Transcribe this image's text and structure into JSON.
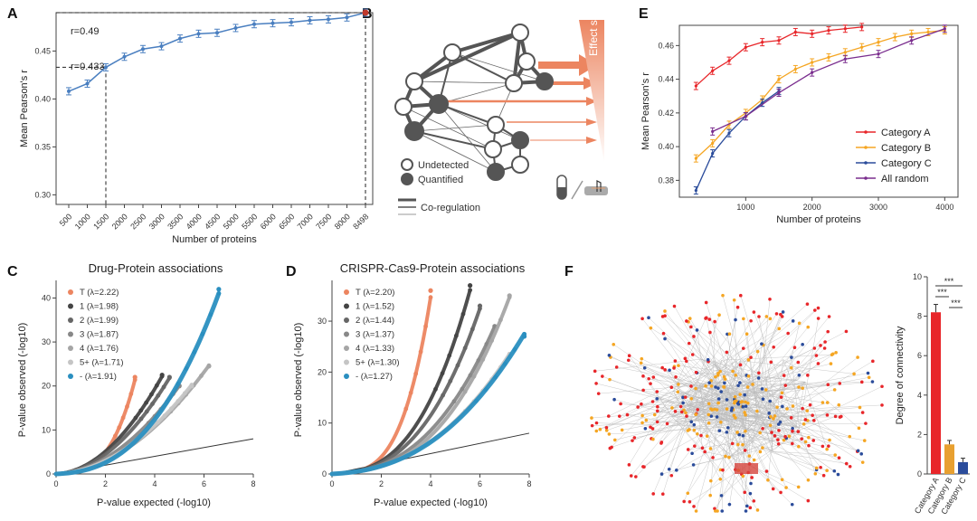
{
  "panels": {
    "A": "A",
    "B": "B",
    "C": "C",
    "D": "D",
    "E": "E",
    "F": "F"
  },
  "colors": {
    "blue": "#4a7fc0",
    "red": "#e8262a",
    "orange": "#f5a623",
    "darkblue": "#2b4c9b",
    "purple": "#7a2d8e",
    "salmon": "#ec8560",
    "qqblue": "#2a8fc0"
  },
  "chart_data": [
    {
      "id": "A",
      "type": "line",
      "xlabel": "Number of proteins",
      "ylabel": "Mean Pearson's r",
      "categories": [
        "500",
        "1000",
        "1500",
        "2000",
        "2500",
        "3000",
        "3500",
        "4000",
        "4500",
        "5000",
        "5500",
        "6000",
        "6500",
        "7000",
        "7500",
        "8000",
        "8498"
      ],
      "values": [
        0.408,
        0.416,
        0.433,
        0.444,
        0.452,
        0.455,
        0.463,
        0.468,
        0.469,
        0.474,
        0.478,
        0.479,
        0.48,
        0.482,
        0.483,
        0.485,
        0.49
      ],
      "yticks": [
        "0.30",
        "0.35",
        "0.40",
        "0.45"
      ],
      "ylim": [
        0.29,
        0.49
      ],
      "annotations": [
        "r=0.49",
        "r=0.433"
      ]
    },
    {
      "id": "E",
      "type": "line",
      "xlabel": "Number of proteins",
      "ylabel": "Mean Pearson's r",
      "xticks": [
        "1000",
        "2000",
        "3000",
        "4000"
      ],
      "yticks": [
        "0.38",
        "0.40",
        "0.42",
        "0.44",
        "0.46"
      ],
      "xlim": [
        0,
        4200
      ],
      "ylim": [
        0.37,
        0.472
      ],
      "series": [
        {
          "name": "Category A",
          "x": [
            250,
            500,
            750,
            1000,
            1250,
            1500,
            1750,
            2000,
            2250,
            2500,
            2750
          ],
          "y": [
            0.436,
            0.445,
            0.451,
            0.459,
            0.462,
            0.463,
            0.468,
            0.467,
            0.469,
            0.47,
            0.471
          ]
        },
        {
          "name": "Category B",
          "x": [
            250,
            500,
            750,
            1000,
            1250,
            1500,
            1750,
            2000,
            2250,
            2500,
            2750,
            3000,
            3250,
            3500,
            3750,
            4000
          ],
          "y": [
            0.393,
            0.402,
            0.413,
            0.42,
            0.428,
            0.44,
            0.446,
            0.45,
            0.453,
            0.456,
            0.459,
            0.462,
            0.465,
            0.467,
            0.468,
            0.469
          ]
        },
        {
          "name": "Category C",
          "x": [
            250,
            500,
            750,
            1000,
            1250,
            1500
          ],
          "y": [
            0.374,
            0.396,
            0.408,
            0.418,
            0.426,
            0.433
          ]
        },
        {
          "name": "All random",
          "x": [
            500,
            1000,
            1500,
            2000,
            2500,
            3000,
            3500,
            4000
          ],
          "y": [
            0.409,
            0.418,
            0.432,
            0.444,
            0.452,
            0.455,
            0.463,
            0.47
          ]
        }
      ]
    },
    {
      "id": "C",
      "type": "scatter",
      "title": "Drug-Protein associations",
      "xlabel": "P-value expected (-log10)",
      "ylabel": "P-value observed (-log10)",
      "xticks": [
        "0",
        "2",
        "4",
        "6",
        "8"
      ],
      "yticks": [
        "0",
        "10",
        "20",
        "30",
        "40"
      ],
      "xlim": [
        0,
        8
      ],
      "ylim": [
        0,
        44
      ],
      "series": [
        {
          "name": "T (λ=2.22)",
          "endx": 3.2,
          "endy": 22,
          "exp": 3.3
        },
        {
          "name": "1 (λ=1.98)",
          "endx": 4.3,
          "endy": 22.5,
          "exp": 2.0
        },
        {
          "name": "2 (λ=1.99)",
          "endx": 4.6,
          "endy": 22.0,
          "exp": 2.0
        },
        {
          "name": "3 (λ=1.87)",
          "endx": 5.0,
          "endy": 20.0,
          "exp": 2.0
        },
        {
          "name": "4 (λ=1.76)",
          "endx": 6.2,
          "endy": 24.5,
          "exp": 2.0
        },
        {
          "name": "5+ (λ=1.71)",
          "endx": 5.5,
          "endy": 20.0,
          "exp": 2.0
        },
        {
          "name": "- (λ=1.91)",
          "endx": 6.6,
          "endy": 42.0,
          "exp": 2.5
        }
      ]
    },
    {
      "id": "D",
      "type": "scatter",
      "title": "CRISPR-Cas9-Protein associations",
      "xlabel": "P-value expected (-log10)",
      "ylabel": "P-value observed (-log10)",
      "xticks": [
        "0",
        "2",
        "4",
        "6",
        "8"
      ],
      "yticks": [
        "0",
        "10",
        "20",
        "30"
      ],
      "xlim": [
        0,
        8
      ],
      "ylim": [
        0,
        38
      ],
      "series": [
        {
          "name": "T (λ=2.20)",
          "endx": 4.0,
          "endy": 36,
          "exp": 3.6
        },
        {
          "name": "1 (λ=1.52)",
          "endx": 5.6,
          "endy": 37,
          "exp": 2.8
        },
        {
          "name": "2 (λ=1.44)",
          "endx": 6.0,
          "endy": 33,
          "exp": 2.7
        },
        {
          "name": "3 (λ=1.37)",
          "endx": 6.6,
          "endy": 29,
          "exp": 2.6
        },
        {
          "name": "4 (λ=1.33)",
          "endx": 7.2,
          "endy": 35,
          "exp": 2.8
        },
        {
          "name": "5+ (λ=1.30)",
          "endx": 7.2,
          "endy": 23,
          "exp": 2.4
        },
        {
          "name": "- (λ=1.27)",
          "endx": 7.8,
          "endy": 27,
          "exp": 2.4
        }
      ]
    },
    {
      "id": "F",
      "type": "bar",
      "ylabel": "Degree of connectivity",
      "categories": [
        "Category A",
        "Category B",
        "Category C"
      ],
      "values": [
        8.2,
        1.5,
        0.6
      ],
      "errors": [
        0.4,
        0.2,
        0.2
      ],
      "yticks": [
        "0",
        "2",
        "4",
        "6",
        "8",
        "10"
      ],
      "ylim": [
        0,
        10
      ],
      "significance": [
        "***",
        "***",
        "***"
      ]
    }
  ],
  "network_B": {
    "legend": [
      "Undetected",
      "Quantified",
      "Co-regulation"
    ],
    "effect_label": "Effect size"
  }
}
